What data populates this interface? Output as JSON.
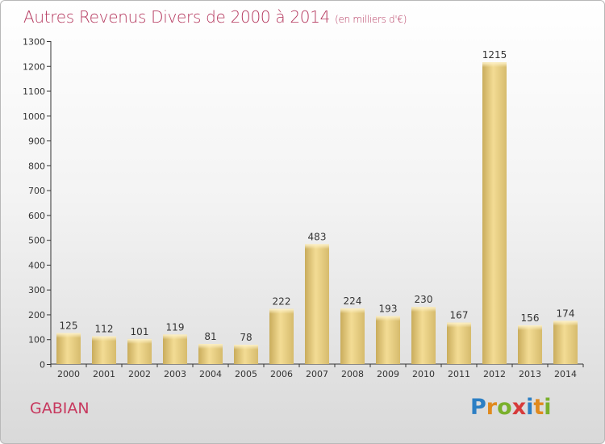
{
  "header": {
    "title": "Autres Revenus Divers de 2000 à 2014",
    "unit": "(en milliers d'€)"
  },
  "footer": {
    "commune": "GABIAN",
    "logo_letters": [
      "P",
      "r",
      "o",
      "x",
      "i",
      "t",
      "i"
    ],
    "logo_colors": [
      "#2c7fc4",
      "#e08a1e",
      "#7ab02c",
      "#d63a3a",
      "#2c7fc4",
      "#e08a1e",
      "#7ab02c"
    ]
  },
  "chart_data": {
    "type": "bar",
    "title": "Autres Revenus Divers de 2000 à 2014",
    "categories": [
      "2000",
      "2001",
      "2002",
      "2003",
      "2004",
      "2005",
      "2006",
      "2007",
      "2008",
      "2009",
      "2010",
      "2011",
      "2012",
      "2013",
      "2014"
    ],
    "values": [
      125,
      112,
      101,
      119,
      81,
      78,
      222,
      483,
      224,
      193,
      230,
      167,
      1215,
      156,
      174
    ],
    "ylim": [
      0,
      1300
    ],
    "yticks": [
      0,
      100,
      200,
      300,
      400,
      500,
      600,
      700,
      800,
      900,
      1000,
      1100,
      1200,
      1300
    ],
    "bar_color": "#e8cf86",
    "grid": false
  }
}
